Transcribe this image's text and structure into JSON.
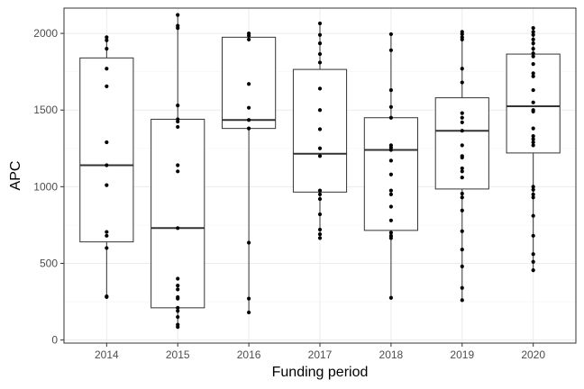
{
  "chart_data": {
    "type": "box",
    "xlabel": "Funding period",
    "ylabel": "APC",
    "ylim": [
      -20,
      2165
    ],
    "y_ticks": [
      0,
      500,
      1000,
      1500,
      2000
    ],
    "grid": true,
    "categories": [
      "2014",
      "2015",
      "2016",
      "2017",
      "2018",
      "2019",
      "2020"
    ],
    "boxes": [
      {
        "category": "2014",
        "whisker_low": 280,
        "q1": 640,
        "median": 1140,
        "q3": 1840,
        "whisker_high": 1975
      },
      {
        "category": "2015",
        "whisker_low": 85,
        "q1": 210,
        "median": 730,
        "q3": 1440,
        "whisker_high": 2120
      },
      {
        "category": "2016",
        "whisker_low": 180,
        "q1": 1380,
        "median": 1435,
        "q3": 1975,
        "whisker_high": 2000
      },
      {
        "category": "2017",
        "whisker_low": 665,
        "q1": 965,
        "median": 1215,
        "q3": 1765,
        "whisker_high": 2065
      },
      {
        "category": "2018",
        "whisker_low": 275,
        "q1": 715,
        "median": 1240,
        "q3": 1450,
        "whisker_high": 1995
      },
      {
        "category": "2019",
        "whisker_low": 260,
        "q1": 985,
        "median": 1365,
        "q3": 1580,
        "whisker_high": 2010
      },
      {
        "category": "2020",
        "whisker_low": 455,
        "q1": 1220,
        "median": 1525,
        "q3": 1865,
        "whisker_high": 2035
      }
    ],
    "points": [
      {
        "category": "2014",
        "values": [
          1975,
          1955,
          1900,
          1770,
          1655,
          1290,
          1140,
          1010,
          705,
          680,
          600,
          285,
          280
        ]
      },
      {
        "category": "2015",
        "values": [
          2120,
          2050,
          2035,
          1530,
          1440,
          1425,
          1390,
          1140,
          1100,
          730,
          400,
          355,
          330,
          280,
          270,
          210,
          190,
          150,
          100,
          85
        ]
      },
      {
        "category": "2016",
        "values": [
          2000,
          1985,
          1960,
          1670,
          1515,
          1435,
          1380,
          635,
          270,
          180
        ]
      },
      {
        "category": "2017",
        "values": [
          2065,
          1990,
          1935,
          1865,
          1810,
          1640,
          1500,
          1375,
          1250,
          1200,
          975,
          950,
          920,
          820,
          720,
          690,
          665
        ]
      },
      {
        "category": "2018",
        "values": [
          1995,
          1890,
          1630,
          1520,
          1450,
          1270,
          1255,
          1240,
          1170,
          1080,
          975,
          950,
          870,
          780,
          700,
          680,
          665,
          275
        ]
      },
      {
        "category": "2019",
        "values": [
          2010,
          1995,
          1975,
          1960,
          1770,
          1680,
          1480,
          1450,
          1420,
          1365,
          1270,
          1200,
          1190,
          1120,
          1100,
          1060,
          955,
          930,
          845,
          710,
          590,
          480,
          340,
          260
        ]
      },
      {
        "category": "2020",
        "values": [
          2035,
          2010,
          1990,
          1960,
          1935,
          1900,
          1870,
          1850,
          1800,
          1740,
          1720,
          1630,
          1550,
          1500,
          1490,
          1380,
          1330,
          1310,
          1290,
          1270,
          1000,
          980,
          950,
          930,
          810,
          680,
          560,
          510,
          455
        ]
      }
    ]
  }
}
